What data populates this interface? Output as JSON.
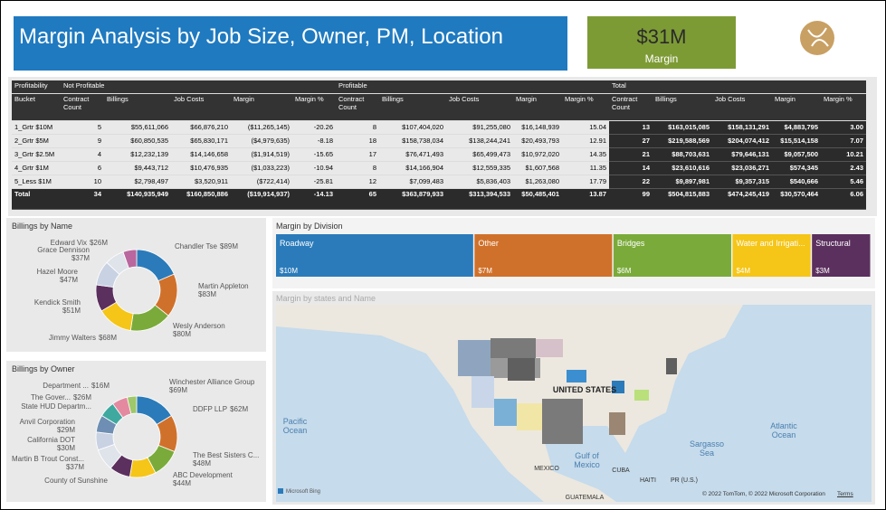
{
  "header": {
    "title": "Margin Analysis by Job Size, Owner, PM, Location"
  },
  "kpi": {
    "value": "$31M",
    "label": "Margin"
  },
  "table": {
    "group_headers": [
      "Profitability",
      "Not Profitable",
      "Profitable",
      "Total"
    ],
    "columns": [
      "Bucket",
      "Contract Count",
      "Billings",
      "Job Costs",
      "Margin",
      "Margin %",
      "Contract Count",
      "Billings",
      "Job Costs",
      "Margin",
      "Margin %",
      "Contract Count",
      "Billings",
      "Job Costs",
      "Margin",
      "Margin %"
    ],
    "rows": [
      [
        "1_Grtr $10M",
        "5",
        "$55,611,066",
        "$66,876,210",
        "($11,265,145)",
        "-20.26",
        "8",
        "$107,404,020",
        "$91,255,080",
        "$16,148,939",
        "15.04",
        "13",
        "$163,015,085",
        "$158,131,291",
        "$4,883,795",
        "3.00"
      ],
      [
        "2_Grtr $5M",
        "9",
        "$60,850,535",
        "$65,830,171",
        "($4,979,635)",
        "-8.18",
        "18",
        "$158,738,034",
        "$138,244,241",
        "$20,493,793",
        "12.91",
        "27",
        "$219,588,569",
        "$204,074,412",
        "$15,514,158",
        "7.07"
      ],
      [
        "3_Grtr $2.5M",
        "4",
        "$12,232,139",
        "$14,146,658",
        "($1,914,519)",
        "-15.65",
        "17",
        "$76,471,493",
        "$65,499,473",
        "$10,972,020",
        "14.35",
        "21",
        "$88,703,631",
        "$79,646,131",
        "$9,057,500",
        "10.21"
      ],
      [
        "4_Grtr $1M",
        "6",
        "$9,443,712",
        "$10,476,935",
        "($1,033,223)",
        "-10.94",
        "8",
        "$14,166,904",
        "$12,559,335",
        "$1,607,568",
        "11.35",
        "14",
        "$23,610,616",
        "$23,036,271",
        "$574,345",
        "2.43"
      ],
      [
        "5_Less $1M",
        "10",
        "$2,798,497",
        "$3,520,911",
        "($722,414)",
        "-25.81",
        "12",
        "$7,099,483",
        "$5,836,403",
        "$1,263,080",
        "17.79",
        "22",
        "$9,897,981",
        "$9,357,315",
        "$540,666",
        "5.46"
      ]
    ],
    "total": [
      "Total",
      "34",
      "$140,935,949",
      "$160,850,886",
      "($19,914,937)",
      "-14.13",
      "65",
      "$363,879,933",
      "$313,394,533",
      "$50,485,401",
      "13.87",
      "99",
      "$504,815,883",
      "$474,245,419",
      "$30,570,464",
      "6.06"
    ]
  },
  "chart_data": [
    {
      "type": "donut",
      "title": "Billings by Name",
      "categories": [
        "Chandler Tse",
        "Martin Appleton",
        "Wesly Anderson",
        "Jimmy Walters",
        "Kendick Smith",
        "Hazel Moore",
        "Grace Dennison",
        "Edward Vix"
      ],
      "values": [
        89,
        83,
        80,
        68,
        51,
        47,
        37,
        26
      ],
      "value_labels": [
        "$89M",
        "$83M",
        "$80M",
        "$68M",
        "$51M",
        "$47M",
        "$37M",
        "$26M"
      ],
      "colors": [
        "#2b7bba",
        "#d0712b",
        "#7aab3a",
        "#f5c518",
        "#5b2f5e",
        "#c9d2e3",
        "#dfe3ea",
        "#b9679e"
      ]
    },
    {
      "type": "donut",
      "title": "Billings by Owner",
      "categories": [
        "Winchester Alliance Group",
        "DDFP LLP",
        "The Best Sisters C...",
        "ABC Development",
        "County of Sunshine",
        "Martin B Trout Const...",
        "California DOT",
        "Anvil Corporation",
        "State HUD Departm...",
        "The Gover...",
        "Department ..."
      ],
      "values": [
        69,
        62,
        48,
        44,
        35,
        37,
        30,
        29,
        27,
        26,
        16
      ],
      "value_labels": [
        "$69M",
        "$62M",
        "$48M",
        "$44M",
        null,
        "$37M",
        "$30M",
        "$29M",
        null,
        "$26M",
        "$16M"
      ],
      "colors": [
        "#2b7bba",
        "#d0712b",
        "#7aab3a",
        "#f5c518",
        "#5b2f5e",
        "#dfe3ea",
        "#c9d2e3",
        "#6e8fb3",
        "#3fa9a0",
        "#e48aa0",
        "#9ec86b"
      ]
    },
    {
      "type": "treemap",
      "title": "Margin by Division",
      "categories": [
        "Roadway",
        "Other",
        "Bridges",
        "Water and Irrigati...",
        "Structural"
      ],
      "values": [
        10,
        7,
        6,
        4,
        3
      ],
      "value_labels": [
        "$10M",
        "$7M",
        "$6M",
        "$4M",
        "$3M"
      ],
      "colors": [
        "#2b7bba",
        "#d0712b",
        "#7aab3a",
        "#f5c518",
        "#5b2f5e"
      ]
    }
  ],
  "map": {
    "title": "Margin by states and Name",
    "labels": [
      "UNITED STATES",
      "Pacific Ocean",
      "Atlantic Ocean",
      "Gulf of Mexico",
      "Sargasso Sea",
      "MEXICO",
      "CUBA",
      "HAITI",
      "PR (U.S.)",
      "GUATEMALA"
    ],
    "provider": "Microsoft Bing",
    "attribution": "© 2022 TomTom, © 2022 Microsoft Corporation",
    "terms": "Terms"
  }
}
